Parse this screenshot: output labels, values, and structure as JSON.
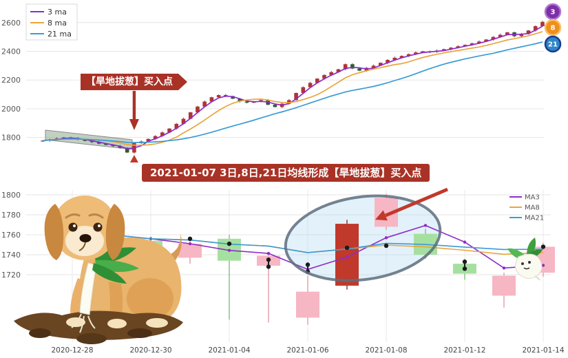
{
  "page": {
    "background": "#ffffff"
  },
  "top_chart": {
    "type": "candlestick",
    "legend": [
      {
        "label": "3 ma",
        "color": "#8e2bc9"
      },
      {
        "label": "8 ma",
        "color": "#eba43c"
      },
      {
        "label": "21 ma",
        "color": "#3a9bd5"
      }
    ],
    "end_badges": [
      {
        "label": "3",
        "bg": "#7d2fa8",
        "ring": "#b07ad0"
      },
      {
        "label": "8",
        "bg": "#ef8f1c",
        "ring": "#f7c06a"
      },
      {
        "label": "21",
        "bg": "#2f86c8",
        "ring": "#1a3a8f"
      }
    ],
    "yticks": [
      1800,
      2000,
      2200,
      2400,
      2600
    ],
    "ylim": [
      1645,
      2690
    ],
    "ma_windows": [
      3,
      8,
      21
    ],
    "closes": [
      1778,
      1786,
      1793,
      1800,
      1794,
      1786,
      1776,
      1768,
      1757,
      1748,
      1740,
      1728,
      1695,
      1760,
      1772,
      1790,
      1810,
      1835,
      1862,
      1895,
      1930,
      1975,
      2015,
      2050,
      2080,
      2095,
      2088,
      2070,
      2050,
      2042,
      2052,
      2060,
      2028,
      2012,
      2035,
      2060,
      2110,
      2150,
      2180,
      2210,
      2235,
      2255,
      2275,
      2310,
      2280,
      2265,
      2285,
      2300,
      2320,
      2340,
      2355,
      2368,
      2380,
      2392,
      2400,
      2395,
      2405,
      2415,
      2425,
      2435,
      2445,
      2455,
      2468,
      2482,
      2500,
      2515,
      2532,
      2505,
      2520,
      2545,
      2575,
      2605
    ],
    "annotation": {
      "text": "【旱地拔葱】买入点",
      "candle_index": 13
    },
    "colors": {
      "up": "#b03434",
      "down": "#2c5f2c",
      "wick": "#3c3c3c",
      "annotation": "#a93226",
      "band": "#8fa98f"
    }
  },
  "banner": {
    "text": "2021-01-07 3日,8日,21日均线形成【旱地拔葱】买入点",
    "bg": "#a93226",
    "fg": "#ffffff"
  },
  "bottom_chart": {
    "type": "candlestick",
    "xticklabels": [
      "2020-12-28",
      "2020-12-30",
      "2021-01-04",
      "2021-01-06",
      "2021-01-08",
      "2021-01-12",
      "2021-01-14"
    ],
    "yticks": [
      1720,
      1740,
      1760,
      1780,
      1800
    ],
    "ylim": [
      1652,
      1808
    ],
    "candles": [
      [
        1758,
        1770,
        1752,
        1766
      ],
      [
        1766,
        1769,
        1750,
        1754
      ],
      [
        1754,
        1758,
        1744,
        1748
      ],
      [
        1737,
        1756,
        1731,
        1751
      ],
      [
        1756,
        1760,
        1675,
        1734
      ],
      [
        1729,
        1742,
        1672,
        1739
      ],
      [
        1677,
        1719,
        1670,
        1703
      ],
      [
        1709,
        1775,
        1705,
        1771
      ],
      [
        1768,
        1801,
        1765,
        1797
      ],
      [
        1761,
        1766,
        1736,
        1740
      ],
      [
        1731,
        1736,
        1715,
        1721
      ],
      [
        1699,
        1722,
        1687,
        1719
      ],
      [
        1722,
        1752,
        1718,
        1748
      ]
    ],
    "highlight_index": 7,
    "ma_windows": [
      3,
      8,
      21
    ],
    "legend": [
      {
        "label": "MA3",
        "color": "#8e2bc9"
      },
      {
        "label": "MA8",
        "color": "#eba43c"
      },
      {
        "label": "MA21",
        "color": "#3a9bd5"
      }
    ],
    "markers": [
      [
        3,
        1756
      ],
      [
        4,
        1751
      ],
      [
        5,
        1735
      ],
      [
        5,
        1728
      ],
      [
        6,
        1730
      ],
      [
        6,
        1723
      ],
      [
        7,
        1747
      ],
      [
        8,
        1749
      ],
      [
        10,
        1733
      ],
      [
        10,
        1726
      ],
      [
        12,
        1748
      ]
    ],
    "colors": {
      "up": "#f6b6c3",
      "down": "#a6e0a1",
      "highlight": "#c0392b",
      "ellipse_stroke": "#5d6d7e",
      "ellipse_fill": "#aed6f1",
      "arrow": "#c0392b"
    }
  },
  "decorations": {
    "dog": "dog-pulling-scallion-cartoon",
    "radish": "radish-cartoon"
  }
}
